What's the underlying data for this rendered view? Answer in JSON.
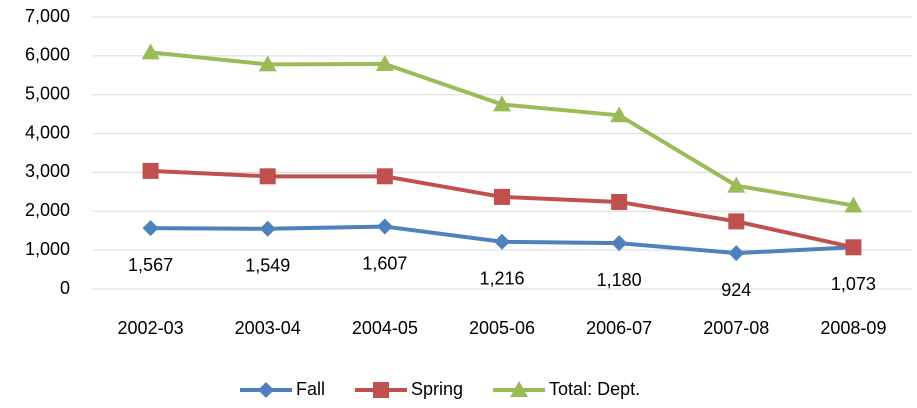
{
  "chart_data": {
    "type": "line",
    "categories": [
      "2002-03",
      "2003-04",
      "2004-05",
      "2005-06",
      "2006-07",
      "2007-08",
      "2008-09"
    ],
    "series": [
      {
        "name": "Fall",
        "color": "#4f81bd",
        "marker": "diamond",
        "values": [
          1567,
          1549,
          1607,
          1216,
          1180,
          924,
          1073
        ],
        "value_labels": [
          "1,567",
          "1,549",
          "1,607",
          "1,216",
          "1,180",
          "924",
          "1,073"
        ]
      },
      {
        "name": "Spring",
        "color": "#c0504d",
        "marker": "square",
        "values": [
          3040,
          2900,
          2900,
          2370,
          2240,
          1740,
          1073
        ]
      },
      {
        "name": "Total: Dept.",
        "color": "#9bbb59",
        "marker": "triangle",
        "values": [
          6090,
          5780,
          5790,
          4750,
          4470,
          2660,
          2150
        ]
      }
    ],
    "ylim": [
      0,
      7000
    ],
    "yticks": [
      0,
      {
        "value": 1000,
        "label": "1,000"
      },
      {
        "value": 2000,
        "label": "2,000"
      },
      {
        "value": 3000,
        "label": "3,000"
      },
      {
        "value": 4000,
        "label": "4,000"
      },
      {
        "value": 5000,
        "label": "5,000"
      },
      {
        "value": 6000,
        "label": "6,000"
      },
      {
        "value": 7000,
        "label": "7,000"
      }
    ],
    "grid": true,
    "legend": "bottom"
  }
}
